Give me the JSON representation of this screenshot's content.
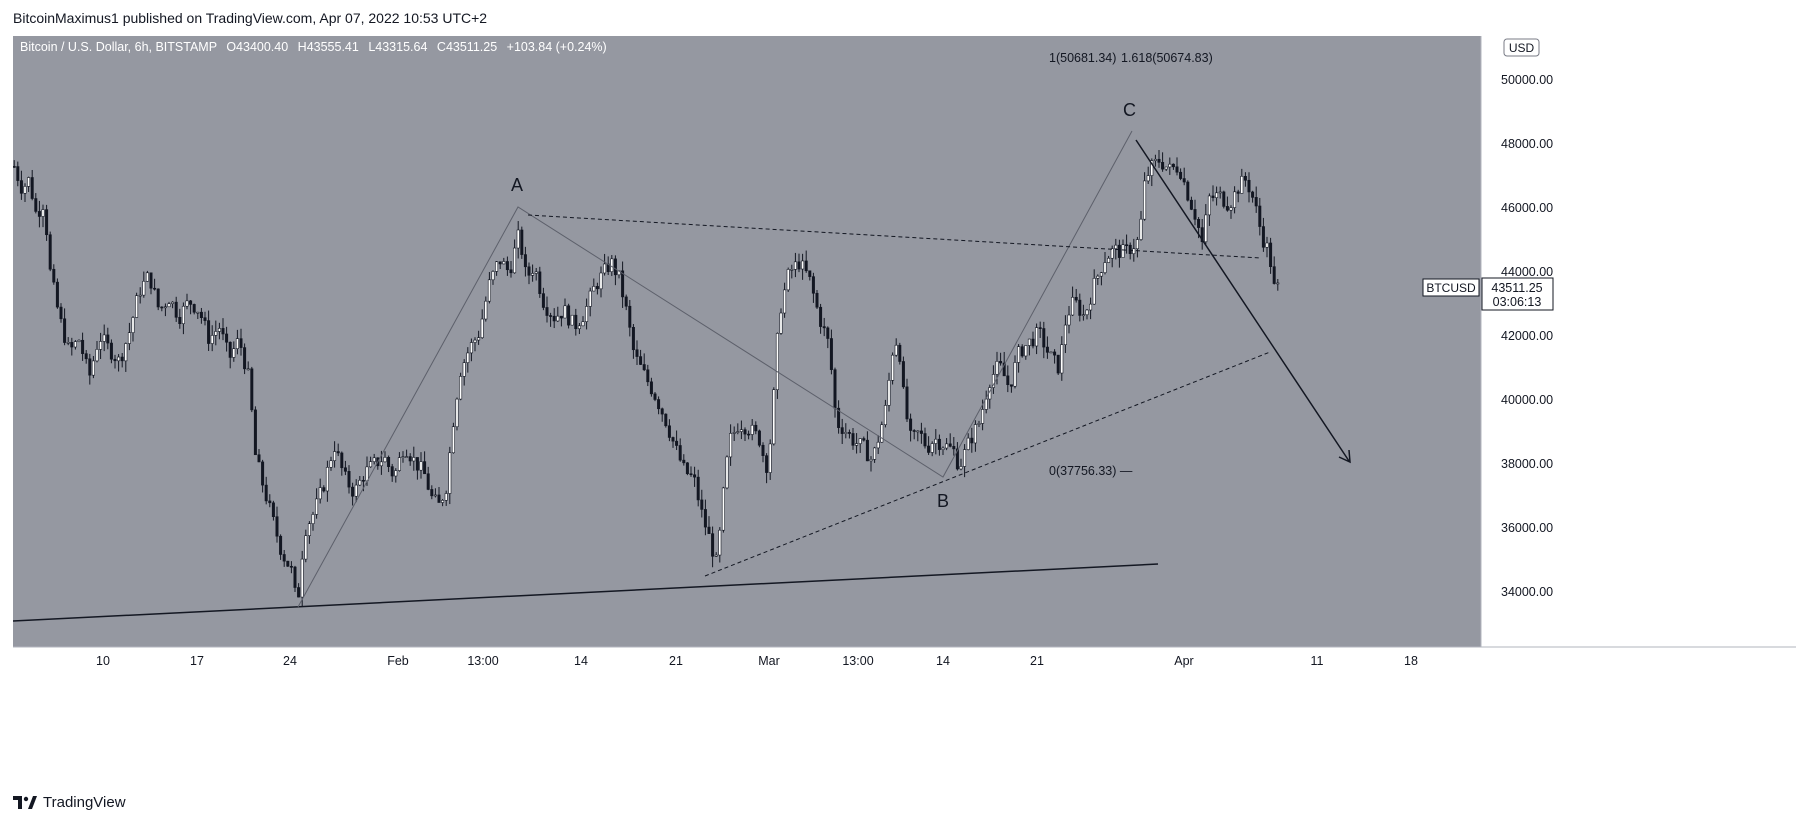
{
  "caption": "BitcoinMaximus1 published on TradingView.com, Apr 07, 2022 10:53 UTC+2",
  "footer": {
    "brand": "TradingView",
    "logo_icon": "tradingview-logo-icon"
  },
  "legend": {
    "symbol": "Bitcoin / U.S. Dollar, 6h, BITSTAMP",
    "o_label": "O",
    "o_value": "43400.40",
    "h_label": "H",
    "h_value": "43555.41",
    "l_label": "L",
    "l_value": "43315.64",
    "c_label": "C",
    "c_value": "43511.25",
    "change": "+103.84 (+0.24%)"
  },
  "currency_badge": "USD",
  "ticker_label": "BTCUSD",
  "price_tag": {
    "price": "43511.25",
    "countdown": "03:06:13"
  },
  "colors": {
    "pane": "#9598a1",
    "axis_bg": "#ffffff",
    "candle": "#131722",
    "drawing": "#131722",
    "channel_line": "#5d606b"
  },
  "chart_data": {
    "type": "candlestick",
    "symbol": "BTCUSD",
    "interval": "6h",
    "ylim": [
      32600,
      51200
    ],
    "y_ticks": [
      "34000.00",
      "36000.00",
      "38000.00",
      "40000.00",
      "42000.00",
      "44000.00",
      "46000.00",
      "48000.00",
      "50000.00"
    ],
    "x_ticks": [
      "10",
      "17",
      "24",
      "Feb",
      "13:00",
      "14",
      "21",
      "Mar",
      "13:00",
      "14",
      "21",
      "Apr",
      "11",
      "18"
    ],
    "close_path": [
      [
        0,
        47300
      ],
      [
        8,
        46600
      ],
      [
        15,
        46900
      ],
      [
        22,
        45800
      ],
      [
        30,
        46200
      ],
      [
        36,
        44000
      ],
      [
        45,
        42600
      ],
      [
        55,
        41500
      ],
      [
        65,
        41900
      ],
      [
        75,
        40700
      ],
      [
        85,
        42000
      ],
      [
        95,
        41600
      ],
      [
        105,
        41200
      ],
      [
        115,
        42100
      ],
      [
        125,
        43400
      ],
      [
        135,
        43900
      ],
      [
        145,
        42800
      ],
      [
        155,
        43200
      ],
      [
        165,
        42600
      ],
      [
        175,
        43100
      ],
      [
        185,
        42800
      ],
      [
        195,
        41900
      ],
      [
        205,
        42300
      ],
      [
        215,
        41300
      ],
      [
        225,
        41900
      ],
      [
        235,
        40600
      ],
      [
        241,
        38300
      ],
      [
        250,
        37200
      ],
      [
        260,
        36100
      ],
      [
        268,
        35200
      ],
      [
        277,
        34700
      ],
      [
        283,
        33500
      ],
      [
        290,
        35900
      ],
      [
        300,
        36500
      ],
      [
        310,
        37400
      ],
      [
        320,
        38600
      ],
      [
        330,
        37600
      ],
      [
        340,
        37100
      ],
      [
        350,
        37700
      ],
      [
        360,
        38000
      ],
      [
        370,
        38200
      ],
      [
        380,
        37600
      ],
      [
        390,
        38600
      ],
      [
        400,
        38100
      ],
      [
        410,
        37700
      ],
      [
        418,
        36900
      ],
      [
        425,
        36700
      ],
      [
        432,
        37300
      ],
      [
        440,
        39600
      ],
      [
        446,
        40900
      ],
      [
        455,
        41600
      ],
      [
        465,
        42100
      ],
      [
        475,
        43600
      ],
      [
        485,
        44400
      ],
      [
        495,
        44000
      ],
      [
        505,
        45200
      ],
      [
        512,
        43800
      ],
      [
        520,
        44200
      ],
      [
        530,
        43000
      ],
      [
        540,
        42600
      ],
      [
        550,
        42800
      ],
      [
        560,
        42300
      ],
      [
        570,
        42700
      ],
      [
        580,
        43500
      ],
      [
        590,
        44000
      ],
      [
        597,
        44300
      ],
      [
        605,
        43800
      ],
      [
        612,
        42800
      ],
      [
        620,
        41400
      ],
      [
        630,
        40800
      ],
      [
        640,
        40200
      ],
      [
        650,
        39500
      ],
      [
        660,
        38600
      ],
      [
        670,
        37800
      ],
      [
        680,
        37500
      ],
      [
        688,
        36400
      ],
      [
        695,
        35700
      ],
      [
        703,
        34800
      ],
      [
        708,
        36700
      ],
      [
        715,
        38700
      ],
      [
        725,
        39300
      ],
      [
        735,
        39100
      ],
      [
        745,
        38800
      ],
      [
        752,
        37900
      ],
      [
        757,
        38900
      ],
      [
        765,
        42700
      ],
      [
        775,
        44000
      ],
      [
        785,
        44300
      ],
      [
        795,
        43800
      ],
      [
        805,
        42600
      ],
      [
        815,
        41700
      ],
      [
        822,
        39300
      ],
      [
        830,
        39100
      ],
      [
        840,
        38700
      ],
      [
        850,
        38500
      ],
      [
        858,
        38100
      ],
      [
        865,
        38900
      ],
      [
        872,
        39800
      ],
      [
        878,
        41500
      ],
      [
        884,
        42000
      ],
      [
        890,
        39900
      ],
      [
        897,
        38700
      ],
      [
        905,
        39000
      ],
      [
        913,
        38500
      ],
      [
        920,
        38800
      ],
      [
        930,
        38600
      ],
      [
        940,
        38400
      ],
      [
        945,
        37900
      ],
      [
        955,
        38700
      ],
      [
        965,
        39300
      ],
      [
        975,
        40600
      ],
      [
        985,
        41100
      ],
      [
        995,
        40400
      ],
      [
        1005,
        41500
      ],
      [
        1015,
        41800
      ],
      [
        1025,
        42100
      ],
      [
        1035,
        41400
      ],
      [
        1045,
        41000
      ],
      [
        1052,
        42600
      ],
      [
        1060,
        43100
      ],
      [
        1070,
        42600
      ],
      [
        1080,
        43600
      ],
      [
        1090,
        44400
      ],
      [
        1100,
        44700
      ],
      [
        1110,
        44600
      ],
      [
        1118,
        44800
      ],
      [
        1125,
        45000
      ],
      [
        1131,
        46900
      ],
      [
        1138,
        47300
      ],
      [
        1145,
        47500
      ],
      [
        1155,
        47200
      ],
      [
        1165,
        47300
      ],
      [
        1175,
        46300
      ],
      [
        1182,
        45700
      ],
      [
        1188,
        44900
      ],
      [
        1195,
        46300
      ],
      [
        1205,
        46400
      ],
      [
        1215,
        46100
      ],
      [
        1225,
        46700
      ],
      [
        1232,
        46900
      ],
      [
        1240,
        46200
      ],
      [
        1248,
        45100
      ],
      [
        1255,
        44600
      ],
      [
        1260,
        43500
      ],
      [
        1266,
        43511
      ]
    ],
    "drawings": {
      "wave_labels": [
        "A",
        "B",
        "C"
      ],
      "fib_top": "1(50681.34)",
      "fib_ext": "1.618(50674.83)",
      "fib_zero": "0(37756.33) —"
    }
  }
}
